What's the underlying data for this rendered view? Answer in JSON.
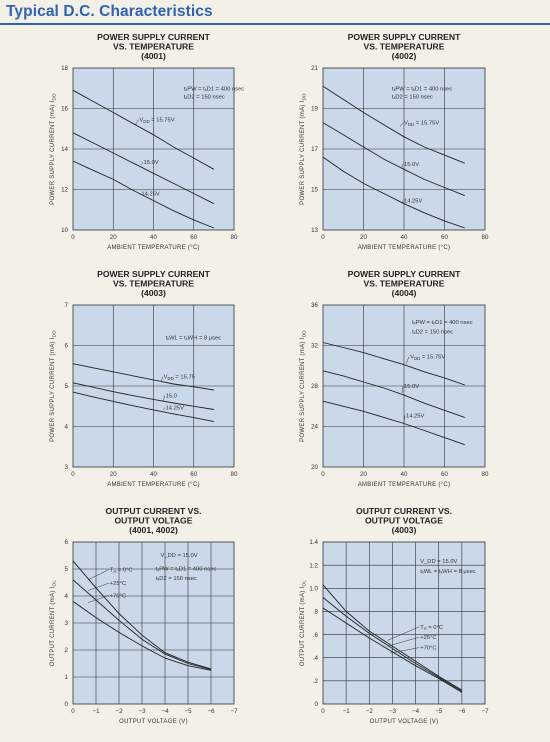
{
  "header": {
    "title": "Typical D.C. Characteristics",
    "accent_color": "#2f63b0"
  },
  "chart_data": [
    {
      "type": "line",
      "title": [
        "POWER SUPPLY CURRENT",
        "VS. TEMPERATURE",
        "(4001)"
      ],
      "xlabel": "AMBIENT TEMPERATURE (°C)",
      "ylabel": "POWER SUPPLY CURRENT (mA) I",
      "ylabel_sub": "DD",
      "xlim": [
        0,
        80
      ],
      "ylim": [
        10,
        18
      ],
      "xticks": [
        0,
        20,
        40,
        60,
        80
      ],
      "yticks": [
        10,
        12,
        14,
        16,
        18
      ],
      "conditions": [
        {
          "text": "tₓPW = tₓD1 = 400 nsec",
          "at": [
            55,
            16.9
          ]
        },
        {
          "text": "tₓD2 = 150 nsec",
          "at": [
            55,
            16.5
          ]
        }
      ],
      "series": [
        {
          "name": "V_DD = 15.75V",
          "x": [
            0,
            10,
            20,
            30,
            40,
            50,
            60,
            70
          ],
          "y": [
            16.9,
            16.35,
            15.8,
            15.25,
            14.7,
            14.1,
            13.55,
            13.0
          ],
          "label": "V",
          "label_sub": "DD",
          "label_rest": " = 15.75V",
          "label_at": [
            33,
            15.35
          ],
          "arrow_to": [
            31,
            15.2
          ]
        },
        {
          "name": "15.0V",
          "x": [
            0,
            10,
            20,
            30,
            40,
            50,
            60,
            70
          ],
          "y": [
            14.8,
            14.3,
            13.8,
            13.3,
            12.8,
            12.3,
            11.8,
            11.3
          ],
          "label": "15.0V",
          "label_sub": "",
          "label_rest": "",
          "label_at": [
            35,
            13.25
          ],
          "arrow_to": [
            34,
            13.2
          ]
        },
        {
          "name": "14.25V",
          "x": [
            0,
            10,
            20,
            30,
            40,
            50,
            60,
            70
          ],
          "y": [
            13.4,
            12.95,
            12.5,
            11.95,
            11.45,
            10.95,
            10.5,
            10.1
          ],
          "label": "14.25V",
          "label_sub": "",
          "label_rest": "",
          "label_at": [
            34,
            11.7
          ],
          "arrow_to": [
            33,
            11.75
          ]
        }
      ]
    },
    {
      "type": "line",
      "title": [
        "POWER SUPPLY CURRENT",
        "VS. TEMPERATURE",
        "(4002)"
      ],
      "xlabel": "AMBIENT TEMPERATURE (°C)",
      "ylabel": "POWER SUPPLY CURRENT (mA) I",
      "ylabel_sub": "DD",
      "xlim": [
        0,
        80
      ],
      "ylim": [
        13,
        21
      ],
      "xticks": [
        0,
        20,
        40,
        60,
        80
      ],
      "yticks": [
        13,
        15,
        17,
        19,
        21
      ],
      "conditions": [
        {
          "text": "tₓPW = tₓD1 = 400 nsec",
          "at": [
            34,
            19.9
          ]
        },
        {
          "text": "tₓD2 = 150 nsec",
          "at": [
            34,
            19.5
          ]
        }
      ],
      "series": [
        {
          "name": "V_DD = 15.75V",
          "x": [
            0,
            10,
            20,
            30,
            40,
            50,
            60,
            70
          ],
          "y": [
            20.1,
            19.45,
            18.8,
            18.2,
            17.6,
            17.1,
            16.7,
            16.3
          ],
          "label": "V",
          "label_sub": "DD",
          "label_rest": " = 15.75V",
          "label_at": [
            40,
            18.2
          ],
          "arrow_to": [
            38,
            18.1
          ]
        },
        {
          "name": "15.0V",
          "x": [
            0,
            10,
            20,
            30,
            40,
            50,
            60,
            70
          ],
          "y": [
            18.3,
            17.7,
            17.1,
            16.5,
            16.0,
            15.5,
            15.1,
            14.7
          ],
          "label": "15.0V",
          "label_sub": "",
          "label_rest": "",
          "label_at": [
            40,
            16.15
          ],
          "arrow_to": [
            39,
            16.1
          ]
        },
        {
          "name": "14.25V",
          "x": [
            0,
            10,
            20,
            30,
            40,
            50,
            60,
            70
          ],
          "y": [
            16.6,
            15.9,
            15.3,
            14.8,
            14.3,
            13.85,
            13.45,
            13.1
          ],
          "label": "14.25V",
          "label_sub": "",
          "label_rest": "",
          "label_at": [
            40,
            14.35
          ],
          "arrow_to": [
            39,
            14.3
          ]
        }
      ]
    },
    {
      "type": "line",
      "title": [
        "POWER SUPPLY CURRENT",
        "VS. TEMPERATURE",
        "(4003)"
      ],
      "xlabel": "AMBIENT TEMPERATURE (°C)",
      "ylabel": "POWER SUPPLY CURRENT (mA) I",
      "ylabel_sub": "DD",
      "xlim": [
        0,
        80
      ],
      "ylim": [
        3,
        7
      ],
      "xticks": [
        0,
        20,
        40,
        60,
        80
      ],
      "yticks": [
        3,
        4,
        5,
        6,
        7
      ],
      "conditions": [
        {
          "text": "tₓWL = tₓWH = 8 μsec",
          "at": [
            46,
            6.15
          ]
        }
      ],
      "series": [
        {
          "name": "V_DD = 15.75",
          "x": [
            0,
            10,
            20,
            30,
            40,
            50,
            60,
            70
          ],
          "y": [
            5.55,
            5.45,
            5.35,
            5.25,
            5.15,
            5.05,
            4.98,
            4.9
          ],
          "label": "V",
          "label_sub": "DD",
          "label_rest": " = 15.75",
          "label_at": [
            45,
            5.18
          ],
          "arrow_to": [
            44,
            5.12
          ]
        },
        {
          "name": "15.0",
          "x": [
            0,
            10,
            20,
            30,
            40,
            50,
            60,
            70
          ],
          "y": [
            5.08,
            4.97,
            4.86,
            4.76,
            4.67,
            4.58,
            4.5,
            4.42
          ],
          "label": "15.0",
          "label_sub": "",
          "label_rest": "",
          "label_at": [
            46,
            4.72
          ],
          "arrow_to": [
            45,
            4.64
          ]
        },
        {
          "name": "14.25V",
          "x": [
            0,
            10,
            20,
            30,
            40,
            50,
            60,
            70
          ],
          "y": [
            4.85,
            4.73,
            4.62,
            4.51,
            4.41,
            4.31,
            4.22,
            4.12
          ],
          "label": "14.25V",
          "label_sub": "",
          "label_rest": "",
          "label_at": [
            46,
            4.42
          ],
          "arrow_to": [
            45,
            4.4
          ]
        }
      ]
    },
    {
      "type": "line",
      "title": [
        "POWER SUPPLY CURRENT",
        "VS. TEMPERATURE",
        "(4004)"
      ],
      "xlabel": "AMBIENT TEMPERATURE (°C)",
      "ylabel": "POWER SUPPLY CURRENT (mA) I",
      "ylabel_sub": "DD",
      "xlim": [
        0,
        80
      ],
      "ylim": [
        20,
        36
      ],
      "xticks": [
        0,
        20,
        40,
        60,
        80
      ],
      "yticks": [
        20,
        24,
        28,
        32,
        36
      ],
      "conditions": [
        {
          "text": "tₓPW = tₓD1 = 400 nsec",
          "at": [
            44,
            34.1
          ]
        },
        {
          "text": "tₓD2 = 150 nsec",
          "at": [
            44,
            33.2
          ]
        }
      ],
      "series": [
        {
          "name": "V_DD = 15.75V",
          "x": [
            0,
            10,
            20,
            30,
            40,
            50,
            60,
            70
          ],
          "y": [
            32.3,
            31.8,
            31.3,
            30.7,
            30.1,
            29.4,
            28.8,
            28.1
          ],
          "label": "V",
          "label_sub": "DD",
          "label_rest": " = 15.75V",
          "label_at": [
            43,
            30.7
          ],
          "arrow_to": [
            41,
            30.2
          ]
        },
        {
          "name": "15.0V",
          "x": [
            0,
            10,
            20,
            30,
            40,
            50,
            60,
            70
          ],
          "y": [
            29.5,
            29.0,
            28.4,
            27.8,
            27.1,
            26.3,
            25.6,
            24.9
          ],
          "label": "15.0V",
          "label_sub": "",
          "label_rest": "",
          "label_at": [
            40,
            27.8
          ],
          "arrow_to": [
            39,
            27.3
          ]
        },
        {
          "name": "14.25V",
          "x": [
            0,
            10,
            20,
            30,
            40,
            50,
            60,
            70
          ],
          "y": [
            26.5,
            26.0,
            25.5,
            24.9,
            24.3,
            23.6,
            22.9,
            22.2
          ],
          "label": "14.25V",
          "label_sub": "",
          "label_rest": "",
          "label_at": [
            41,
            24.9
          ],
          "arrow_to": [
            40,
            24.4
          ]
        }
      ]
    },
    {
      "type": "line",
      "title": [
        "OUTPUT CURRENT VS.",
        "OUTPUT VOLTAGE",
        "(4001, 4002)"
      ],
      "xlabel": "OUTPUT VOLTAGE (V)",
      "ylabel": "OUTPUT CURRENT (mA) I",
      "ylabel_sub": "OL",
      "xlim": [
        0,
        -7
      ],
      "ylim": [
        0,
        6
      ],
      "xticks": [
        0,
        -1,
        -2,
        -3,
        -4,
        -5,
        -6,
        -7
      ],
      "yticks": [
        0,
        1,
        2,
        3,
        4,
        5,
        6
      ],
      "conditions": [
        {
          "text": "V_DD = 15.0V",
          "at": [
            -3.8,
            5.45
          ]
        },
        {
          "text": "tₓPW = tₓD1 = 400 nsec",
          "at": [
            -3.6,
            4.95
          ]
        },
        {
          "text": "tₓD2 = 150 nsec",
          "at": [
            -3.6,
            4.6
          ]
        }
      ],
      "series": [
        {
          "name": "TA = 0°C",
          "x": [
            0,
            -1,
            -2,
            -3,
            -4,
            -5,
            -6
          ],
          "y": [
            5.3,
            4.3,
            3.35,
            2.55,
            1.9,
            1.55,
            1.3
          ],
          "label": "T",
          "label_sub": "A",
          "label_rest": " = 0°C",
          "label_at": [
            -1.6,
            4.9
          ],
          "arrow_to": [
            -0.65,
            4.6
          ]
        },
        {
          "name": "+25°C",
          "x": [
            0,
            -1,
            -2,
            -3,
            -4,
            -5,
            -6
          ],
          "y": [
            4.6,
            3.85,
            3.1,
            2.4,
            1.85,
            1.5,
            1.28
          ],
          "label": "+25°C",
          "label_sub": "",
          "label_rest": "",
          "label_at": [
            -1.6,
            4.4
          ],
          "arrow_to": [
            -0.65,
            4.2
          ]
        },
        {
          "name": "+70°C",
          "x": [
            0,
            -1,
            -2,
            -3,
            -4,
            -5,
            -6
          ],
          "y": [
            3.8,
            3.2,
            2.65,
            2.15,
            1.7,
            1.42,
            1.25
          ],
          "label": "+70°C",
          "label_sub": "",
          "label_rest": "",
          "label_at": [
            -1.6,
            3.95
          ],
          "arrow_to": [
            -0.65,
            3.75
          ]
        }
      ]
    },
    {
      "type": "line",
      "title": [
        "OUTPUT CURRENT VS.",
        "OUTPUT VOLTAGE",
        "(4003)"
      ],
      "xlabel": "OUTPUT VOLTAGE (V)",
      "ylabel": "OUTPUT CURRENT (mA) I",
      "ylabel_sub": "OL",
      "xlim": [
        0,
        -7
      ],
      "ylim": [
        0,
        1.4
      ],
      "xticks": [
        0,
        -1,
        -2,
        -3,
        -4,
        -5,
        -6,
        -7
      ],
      "yticks": [
        0,
        0.2,
        0.4,
        0.6,
        0.8,
        1.0,
        1.2,
        1.4
      ],
      "ytick_labels": [
        "0",
        ".2",
        ".4",
        ".6",
        ".8",
        "1.0",
        "1.2",
        "1.4"
      ],
      "conditions": [
        {
          "text": "V_DD = 15.0V",
          "at": [
            -4.2,
            1.22
          ]
        },
        {
          "text": "tₓWL = tₓWH = 8 μsec",
          "at": [
            -4.2,
            1.13
          ]
        }
      ],
      "series": [
        {
          "name": "TA = 0°C",
          "x": [
            0,
            -1,
            -2,
            -3,
            -4,
            -5,
            -6
          ],
          "y": [
            1.03,
            0.8,
            0.63,
            0.5,
            0.37,
            0.24,
            0.12
          ],
          "label": "T",
          "label_sub": "A",
          "label_rest": " = 0°C",
          "label_at": [
            -4.2,
            0.65
          ],
          "arrow_to": [
            -2.8,
            0.55
          ]
        },
        {
          "name": "+25°C",
          "x": [
            0,
            -1,
            -2,
            -3,
            -4,
            -5,
            -6
          ],
          "y": [
            0.92,
            0.76,
            0.61,
            0.48,
            0.35,
            0.23,
            0.11
          ],
          "label": "+25°C",
          "label_sub": "",
          "label_rest": "",
          "label_at": [
            -4.2,
            0.56
          ],
          "arrow_to": [
            -2.8,
            0.5
          ]
        },
        {
          "name": "+70°C",
          "x": [
            0,
            -1,
            -2,
            -3,
            -4,
            -5,
            -6
          ],
          "y": [
            0.83,
            0.7,
            0.57,
            0.45,
            0.33,
            0.22,
            0.1
          ],
          "label": "+70°C",
          "label_sub": "",
          "label_rest": "",
          "label_at": [
            -4.2,
            0.47
          ],
          "arrow_to": [
            -2.9,
            0.44
          ]
        }
      ]
    }
  ]
}
